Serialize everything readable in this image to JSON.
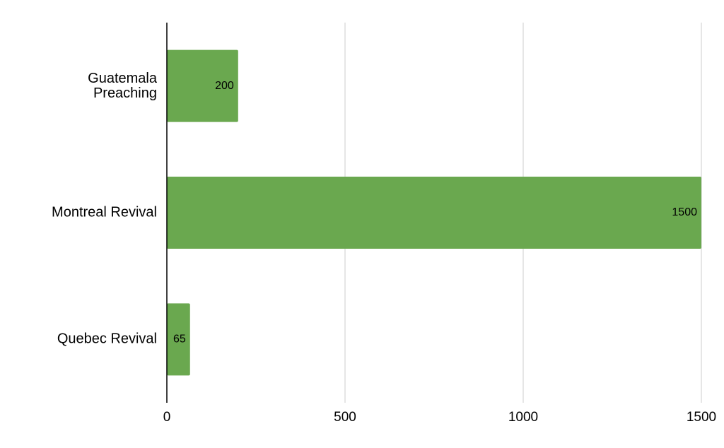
{
  "chart_data": {
    "type": "bar",
    "orientation": "horizontal",
    "categories": [
      "Guatemala Preaching",
      "Montreal Revival",
      "Quebec Revival"
    ],
    "values": [
      200,
      1500,
      65
    ],
    "color": "#6aa84f",
    "xlim": [
      0,
      1500
    ],
    "xticks": [
      0,
      500,
      1000,
      1500
    ],
    "grid": true
  }
}
